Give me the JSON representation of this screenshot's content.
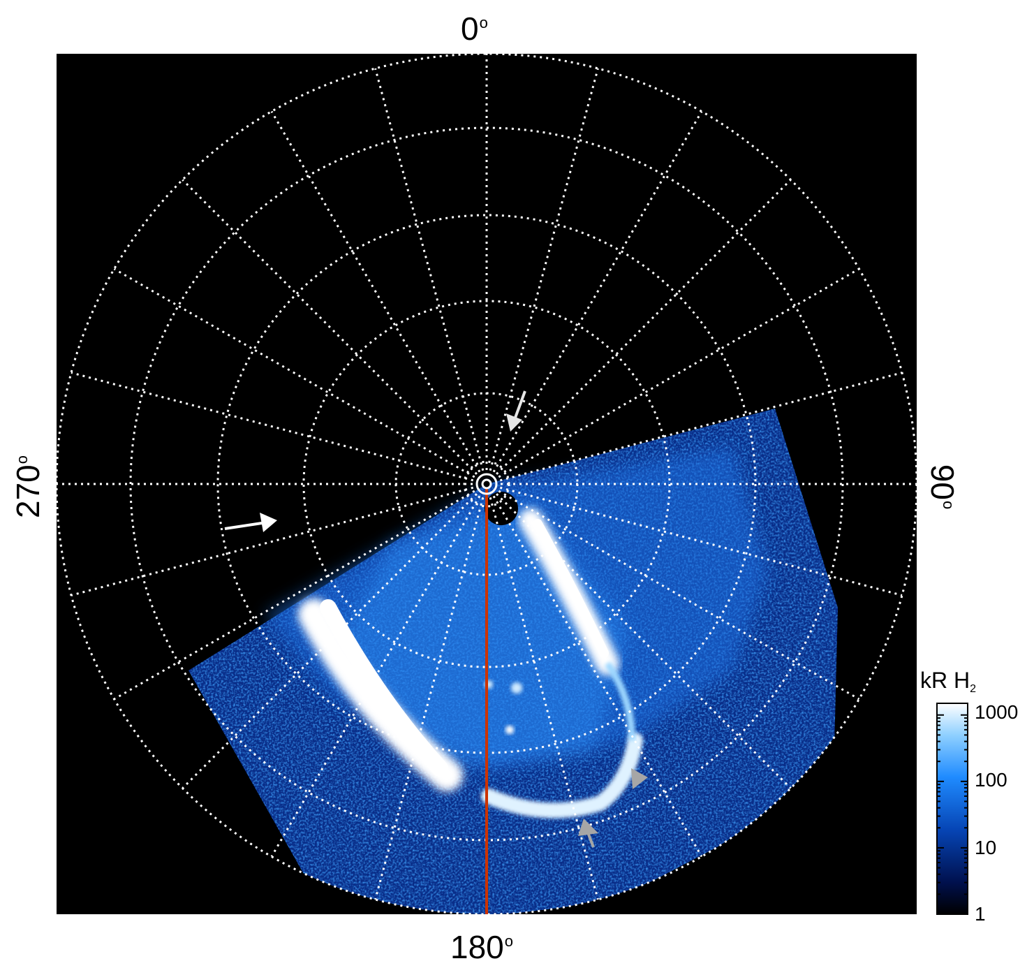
{
  "labels": {
    "top": "0",
    "bottom": "180",
    "left": "270",
    "right": "90",
    "degree_symbol": "o"
  },
  "colorbar": {
    "title_main": "kR H",
    "title_sub": "2",
    "ticks": [
      "1000",
      "100",
      "10",
      "1"
    ],
    "colors": [
      "#000000",
      "#00104d",
      "#0645b5",
      "#1f8bff",
      "#8fd0ff",
      "#ffffff"
    ]
  },
  "colors": {
    "background": "#000000",
    "grid": "#ffffff",
    "meridian_line": "#cc3300",
    "arrow_white": "#ffffff",
    "arrow_gray": "#a6a6a6",
    "aurora_bright": "#ffffff",
    "aurora_mid": "#3399ff",
    "aurora_dim": "#0a3cb4"
  },
  "icons": {
    "arrow_left": "right-arrow-icon",
    "arrow_top": "down-left-arrow-icon",
    "arrow_gray_1": "right-arrow-icon",
    "arrow_gray_2": "up-arrow-icon",
    "pole_marker": "target-circle-icon"
  }
}
